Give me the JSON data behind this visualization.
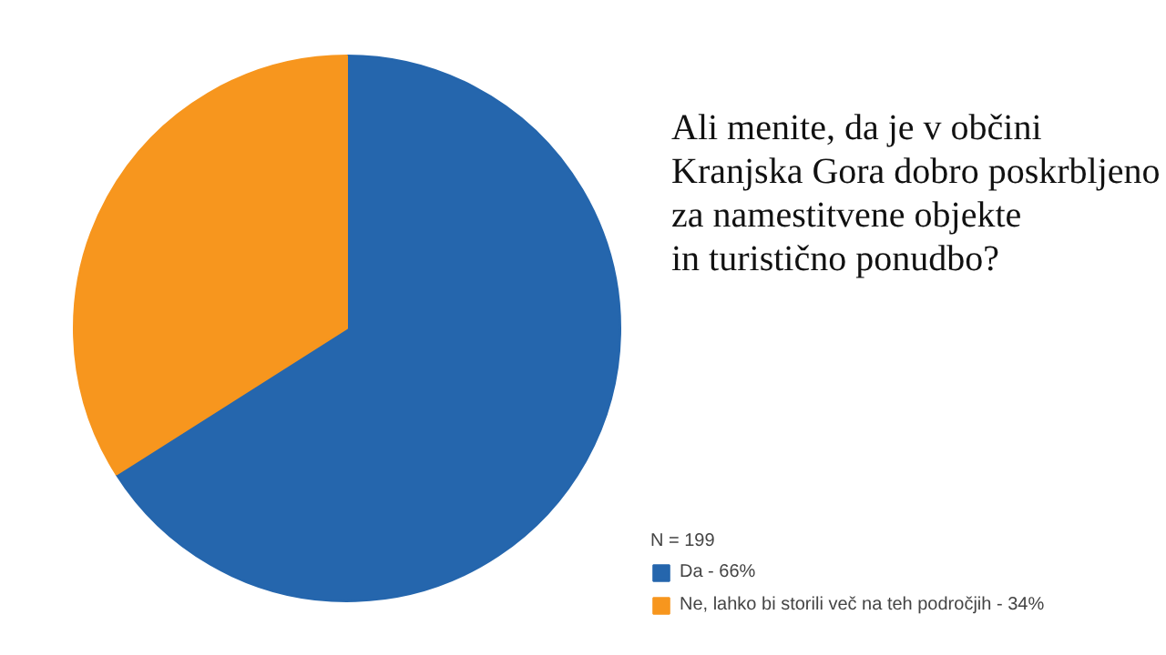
{
  "chart_data": {
    "type": "pie",
    "title": "Ali menite, da je v občini\nKranjska Gora dobro poskrbljeno\nza namestitvene objekte\nin turistično ponudbo?",
    "legend_title": "N = 199",
    "categories": [
      "Da - 66%",
      "Ne, lahko bi storili več na teh področjih - 34%"
    ],
    "values": [
      66,
      34
    ],
    "colors": [
      "#2566ad",
      "#f7961e"
    ],
    "legend": "bottom right"
  }
}
